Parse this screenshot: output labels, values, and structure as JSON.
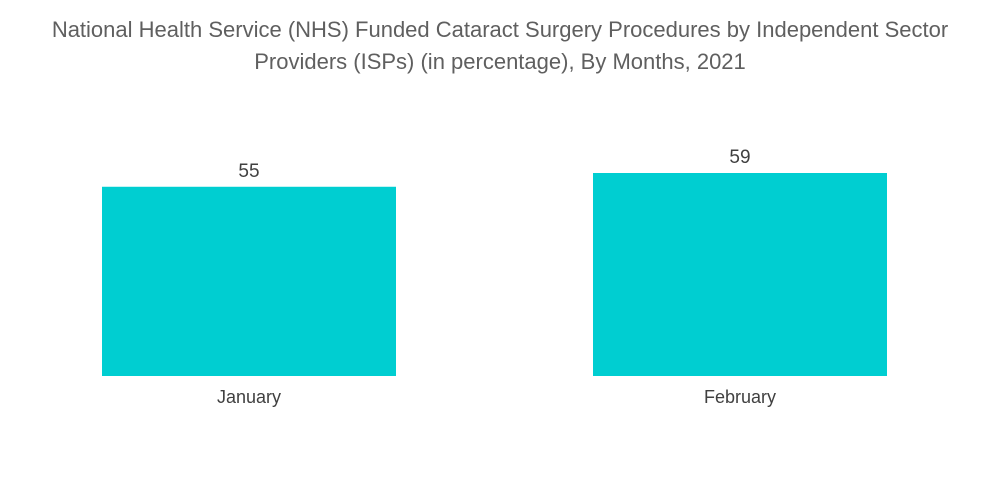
{
  "chart_data": {
    "type": "bar",
    "title_lines": [
      "National Health Service (NHS) Funded Cataract Surgery Procedures by Independent Sector",
      "Providers (ISPs) (in percentage), By Months, 2021"
    ],
    "categories": [
      "January",
      "February"
    ],
    "values": [
      55,
      59
    ],
    "value_labels": [
      "55",
      "59"
    ],
    "xlabel": "",
    "ylabel": "",
    "ylim": [
      0,
      59
    ],
    "grid": false,
    "legend": "none",
    "colors": {
      "bar": "#00CED1"
    }
  }
}
